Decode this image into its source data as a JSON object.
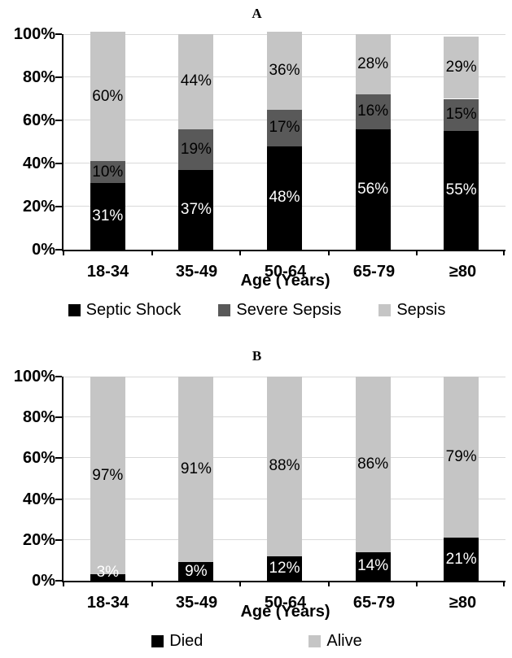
{
  "figure": {
    "background_color": "#ffffff",
    "axis_color": "#000000",
    "grid_color": "#d9d9d9"
  },
  "chart_data": [
    {
      "type": "bar",
      "subtype": "stacked-100-percent",
      "panel_label": "A",
      "categories": [
        "18-34",
        "35-49",
        "50-64",
        "65-79",
        "≥80"
      ],
      "series": [
        {
          "name": "Septic Shock",
          "color": "#000000",
          "label_color": "#ffffff",
          "values": [
            31,
            37,
            48,
            56,
            55
          ]
        },
        {
          "name": "Severe Sepsis",
          "color": "#595959",
          "label_color": "#000000",
          "values": [
            10,
            19,
            17,
            16,
            15
          ]
        },
        {
          "name": "Sepsis",
          "color": "#c5c5c5",
          "label_color": "#000000",
          "values": [
            60,
            44,
            36,
            28,
            29
          ]
        }
      ],
      "xlabel": "Age (Years)",
      "ylabel": "",
      "ylim": [
        0,
        100
      ],
      "y_ticks": [
        "0%",
        "20%",
        "40%",
        "60%",
        "80%",
        "100%"
      ],
      "grid": true,
      "data_label_suffix": "%",
      "legend_position": "bottom"
    },
    {
      "type": "bar",
      "subtype": "stacked-100-percent",
      "panel_label": "B",
      "categories": [
        "18-34",
        "35-49",
        "50-64",
        "65-79",
        "≥80"
      ],
      "series": [
        {
          "name": "Died",
          "color": "#000000",
          "label_color": "#ffffff",
          "values": [
            3,
            9,
            12,
            14,
            21
          ]
        },
        {
          "name": "Alive",
          "color": "#c5c5c5",
          "label_color": "#000000",
          "values": [
            97,
            91,
            88,
            86,
            79
          ]
        }
      ],
      "xlabel": "Age (Years)",
      "ylabel": "",
      "ylim": [
        0,
        100
      ],
      "y_ticks": [
        "0%",
        "20%",
        "40%",
        "60%",
        "80%",
        "100%"
      ],
      "grid": true,
      "data_label_suffix": "%",
      "legend_position": "bottom"
    }
  ]
}
